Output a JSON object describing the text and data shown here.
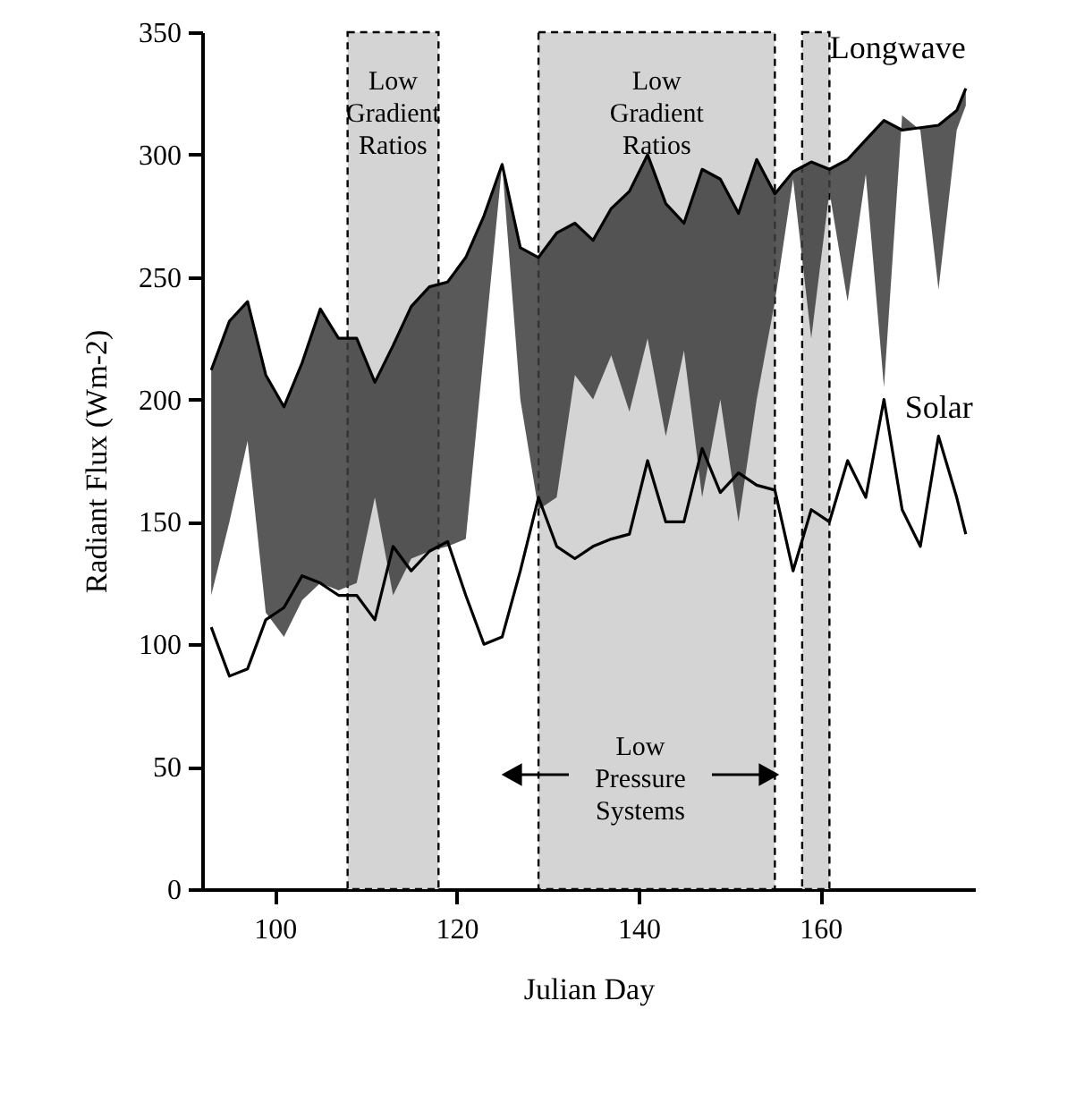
{
  "chart_data": {
    "type": "line",
    "xlabel": "Julian Day",
    "ylabel": "Radiant Flux (Wm-2)",
    "xlim": [
      92,
      177
    ],
    "xticks": [
      100,
      120,
      140,
      160
    ],
    "ylim": [
      0,
      350
    ],
    "yticks": [
      0,
      50,
      100,
      150,
      200,
      250,
      300,
      350
    ],
    "x": [
      93,
      95,
      97,
      99,
      101,
      103,
      105,
      107,
      109,
      111,
      113,
      115,
      117,
      119,
      121,
      123,
      125,
      127,
      129,
      131,
      133,
      135,
      137,
      139,
      141,
      143,
      145,
      147,
      149,
      151,
      153,
      155,
      157,
      159,
      161,
      163,
      165,
      167,
      169,
      171,
      173,
      175,
      176
    ],
    "series": [
      {
        "name": "Longwave",
        "color": "#000000",
        "values": [
          212,
          232,
          240,
          210,
          197,
          215,
          237,
          225,
          225,
          207,
          222,
          238,
          246,
          248,
          258,
          275,
          296,
          262,
          258,
          268,
          272,
          265,
          278,
          285,
          300,
          280,
          272,
          294,
          290,
          276,
          298,
          284,
          293,
          297,
          294,
          298,
          306,
          314,
          310,
          311,
          312,
          318,
          327
        ],
        "lower": [
          120,
          150,
          183,
          113,
          103,
          118,
          125,
          122,
          125,
          160,
          120,
          135,
          138,
          140,
          143,
          220,
          296,
          200,
          155,
          160,
          210,
          200,
          218,
          195,
          225,
          185,
          220,
          160,
          200,
          150,
          200,
          240,
          290,
          225,
          285,
          240,
          292,
          205,
          316,
          310,
          245,
          310,
          320
        ],
        "upper": [
          212,
          232,
          240,
          210,
          197,
          215,
          237,
          225,
          225,
          207,
          222,
          238,
          246,
          248,
          258,
          275,
          296,
          262,
          258,
          268,
          272,
          265,
          278,
          285,
          300,
          280,
          272,
          294,
          290,
          276,
          298,
          284,
          293,
          297,
          294,
          298,
          306,
          314,
          310,
          311,
          312,
          318,
          327
        ]
      },
      {
        "name": "Solar",
        "color": "#000000",
        "values": [
          107,
          87,
          90,
          110,
          115,
          128,
          125,
          120,
          120,
          110,
          140,
          130,
          138,
          142,
          120,
          100,
          103,
          130,
          160,
          140,
          135,
          140,
          143,
          145,
          175,
          150,
          150,
          180,
          162,
          170,
          165,
          163,
          130,
          155,
          150,
          175,
          160,
          200,
          155,
          140,
          185,
          160,
          145
        ]
      }
    ],
    "bands": [
      {
        "axis": "x",
        "from": 108,
        "to": 118,
        "label": "Low Gradient Ratios",
        "color": "#d4d4d4"
      },
      {
        "axis": "x",
        "from": 129,
        "to": 155,
        "label": "Low Gradient Ratios",
        "color": "#d4d4d4"
      },
      {
        "axis": "x",
        "from": 158,
        "to": 161,
        "color": "#d4d4d4"
      }
    ],
    "annotations": [
      "Low Pressure Systems"
    ]
  }
}
